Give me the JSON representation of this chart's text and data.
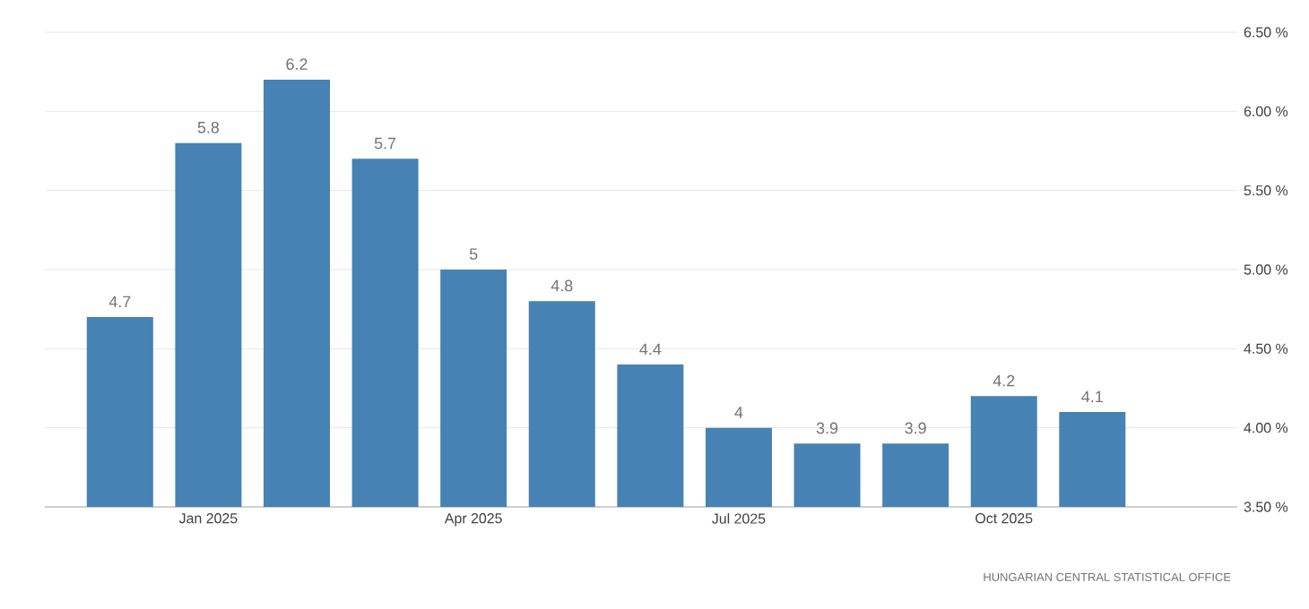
{
  "chart_data": {
    "type": "bar",
    "categories": [
      null,
      "Jan 2025",
      null,
      null,
      "Apr 2025",
      null,
      null,
      "Jul 2025",
      null,
      null,
      "Oct 2025",
      null
    ],
    "values": [
      4.7,
      5.8,
      6.2,
      5.7,
      5,
      4.8,
      4.4,
      4,
      3.9,
      3.9,
      4.2,
      4.1
    ],
    "color": "#4682b4",
    "ylim": [
      3.5,
      6.5
    ],
    "yticks": [
      {
        "value": 3.5,
        "label": "3.50 %"
      },
      {
        "value": 4.0,
        "label": "4.00 %"
      },
      {
        "value": 4.5,
        "label": "4.50 %"
      },
      {
        "value": 5.0,
        "label": "5.00 %"
      },
      {
        "value": 5.5,
        "label": "5.50 %"
      },
      {
        "value": 6.0,
        "label": "6.00 %"
      },
      {
        "value": 6.5,
        "label": "6.50 %"
      }
    ],
    "grid": "y",
    "data_labels": true,
    "annotations": [
      "HUNGARIAN CENTRAL STATISTICAL OFFICE"
    ]
  }
}
